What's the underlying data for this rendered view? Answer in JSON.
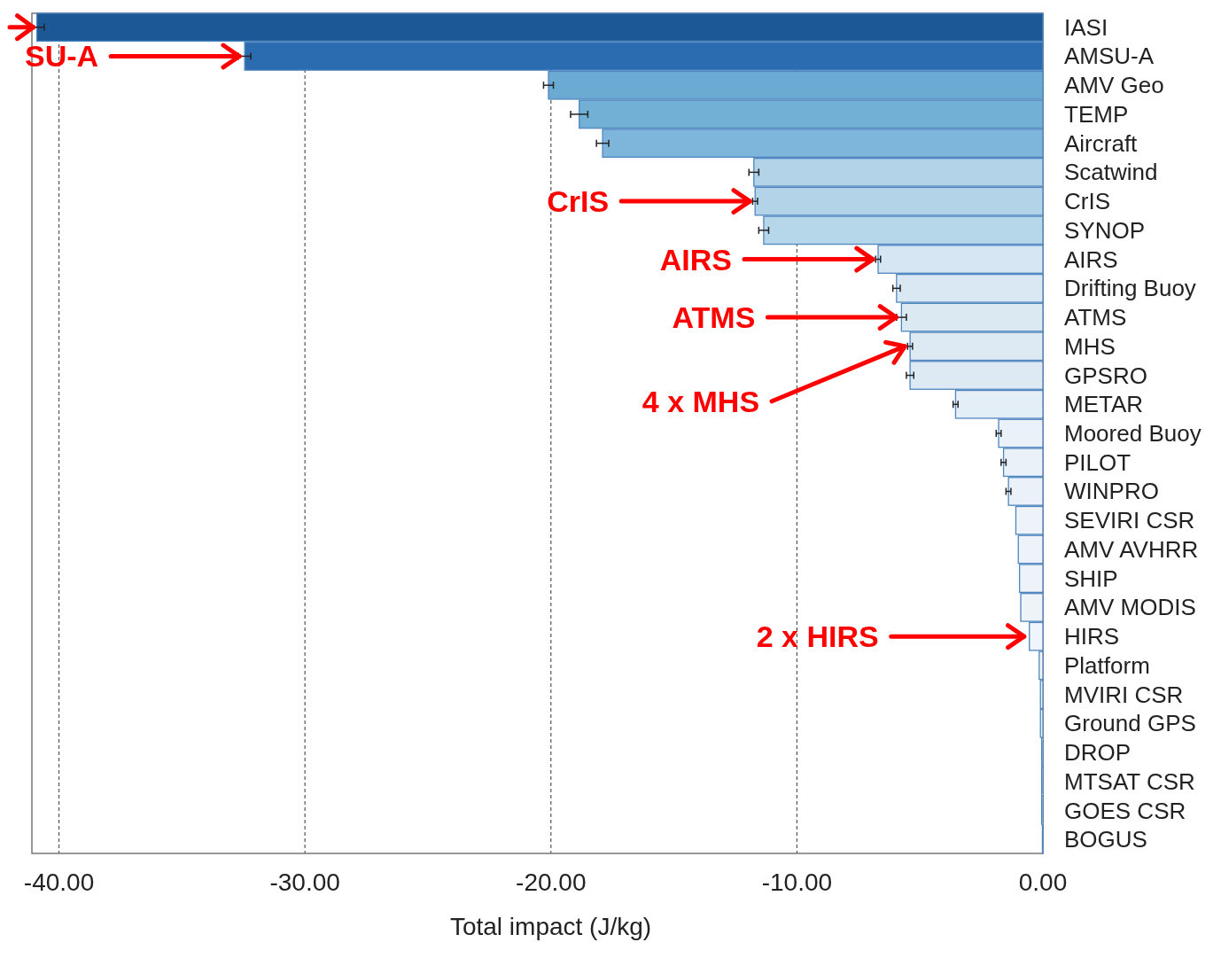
{
  "chart_data": {
    "type": "bar",
    "orientation": "horizontal",
    "xlabel": "Total impact (J/kg)",
    "categories": [
      "IASI",
      "AMSU-A",
      "AMV Geo",
      "TEMP",
      "Aircraft",
      "Scatwind",
      "CrIS",
      "SYNOP",
      "AIRS",
      "Drifting Buoy",
      "ATMS",
      "MHS",
      "GPSRO",
      "METAR",
      "Moored Buoy",
      "PILOT",
      "WINPRO",
      "SEVIRI CSR",
      "AMV AVHRR",
      "SHIP",
      "AMV MODIS",
      "HIRS",
      "Platform",
      "MVIRI CSR",
      "Ground GPS",
      "DROP",
      "MTSAT CSR",
      "GOES CSR",
      "BOGUS"
    ],
    "values": [
      -40.9,
      -32.45,
      -20.1,
      -18.85,
      -17.9,
      -11.75,
      -11.7,
      -11.35,
      -6.7,
      -5.95,
      -5.75,
      -5.4,
      -5.4,
      -3.55,
      -1.8,
      -1.6,
      -1.4,
      -1.1,
      -1.0,
      -0.95,
      -0.9,
      -0.55,
      -0.15,
      -0.1,
      -0.1,
      -0.05,
      -0.05,
      -0.05,
      -0.02
    ],
    "errors": [
      0.3,
      0.25,
      0.2,
      0.35,
      0.25,
      0.2,
      0.1,
      0.2,
      0.1,
      0.15,
      0.2,
      0.1,
      0.15,
      0.1,
      0.1,
      0.1,
      0.1,
      null,
      null,
      null,
      null,
      null,
      null,
      null,
      null,
      null,
      null,
      null,
      null
    ],
    "colors": [
      "#1c5896",
      "#2b6cb0",
      "#6aaad3",
      "#72b0d6",
      "#7db6da",
      "#b2d3e8",
      "#b2d3e8",
      "#b6d6ea",
      "#d6e6f2",
      "#d9e8f3",
      "#dbe9f3",
      "#dde9f3",
      "#dde9f3",
      "#e4eef6",
      "#eaf1f8",
      "#eaf1f8",
      "#eaf1f8",
      "#edf3f9",
      "#edf3f9",
      "#edf3f9",
      "#edf3f9",
      "#eff5fa",
      "#f0f5fa",
      "#f0f5fa",
      "#f0f5fa",
      "#f0f5fa",
      "#f0f5fa",
      "#f0f5fa",
      "#f0f5fa"
    ],
    "xlim": [
      -41.1,
      0
    ],
    "xticks": [
      {
        "value": -40,
        "label": "-40.00"
      },
      {
        "value": -30,
        "label": "-30.00"
      },
      {
        "value": -20,
        "label": "-20.00"
      },
      {
        "value": -10,
        "label": "-10.00"
      },
      {
        "value": 0,
        "label": "0.00"
      }
    ],
    "grid": "x",
    "annotations": [
      {
        "text": "SU-A",
        "x": -32.45,
        "y": "AMSU-A"
      },
      {
        "text": "CrIS",
        "x": -11.7,
        "y": "CrIS"
      },
      {
        "text": "AIRS",
        "x": -6.7,
        "y": "AIRS"
      },
      {
        "text": "ATMS",
        "x": -5.75,
        "y": "ATMS"
      },
      {
        "text": "4 x MHS",
        "x": -5.4,
        "y": "MHS"
      },
      {
        "text": "2 x HIRS",
        "x": -0.55,
        "y": "HIRS"
      }
    ]
  }
}
